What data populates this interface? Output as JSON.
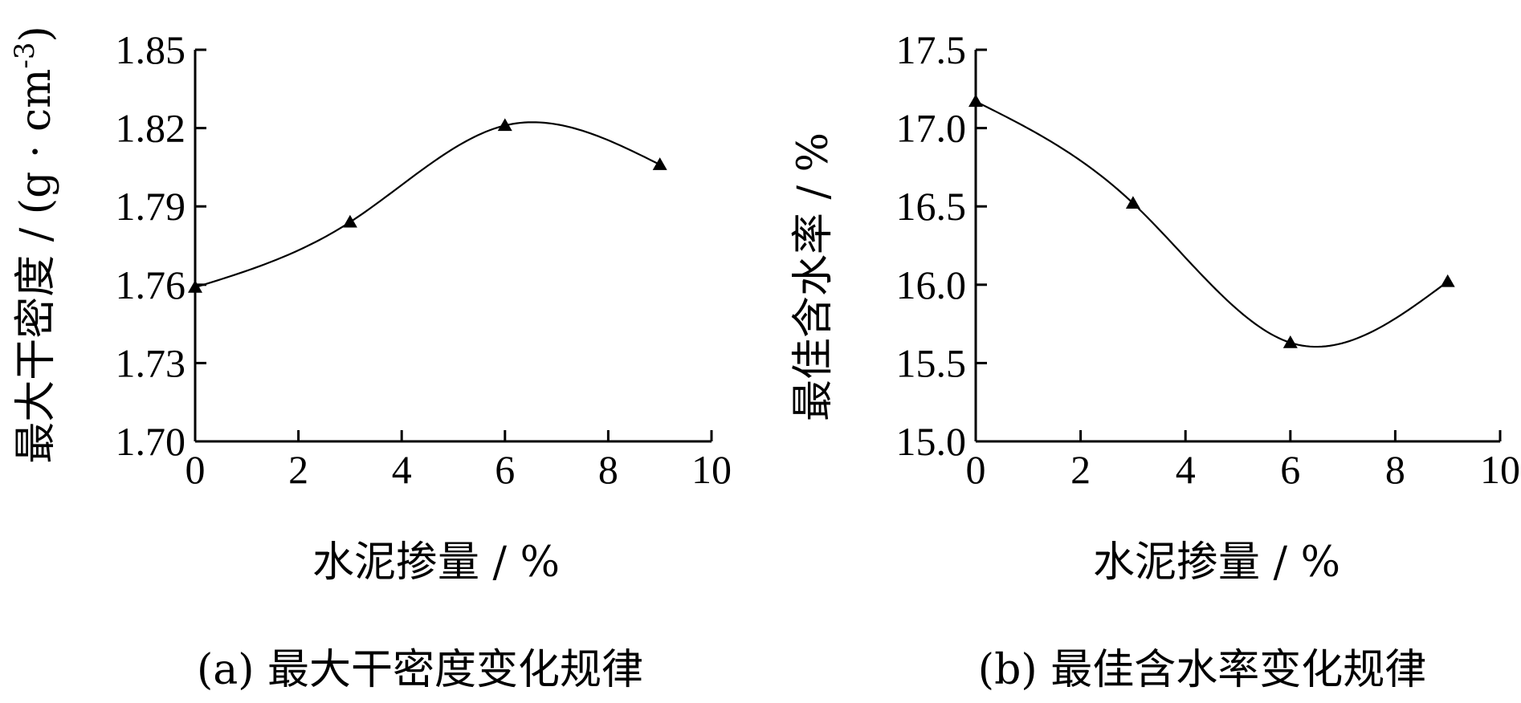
{
  "chart_data": [
    {
      "type": "line",
      "caption": "(a) 最大干密度变化规律",
      "xlabel": "水泥掺量 / %",
      "ylabel_main": "最大干密度 / (g · cm",
      "ylabel_sup": "-3",
      "ylabel_close": ")",
      "xlim": [
        0,
        10
      ],
      "ylim": [
        1.7,
        1.85
      ],
      "xticks": [
        0,
        2,
        4,
        6,
        8,
        10
      ],
      "yticks": [
        1.7,
        1.73,
        1.76,
        1.79,
        1.82,
        1.85
      ],
      "ytick_labels": [
        "1.70",
        "1.73",
        "1.76",
        "1.79",
        "1.82",
        "1.85"
      ],
      "x": [
        0,
        3,
        6,
        9
      ],
      "y": [
        1.759,
        1.784,
        1.821,
        1.806
      ],
      "marker": "triangle",
      "smooth": true,
      "grid": false
    },
    {
      "type": "line",
      "caption": "(b) 最佳含水率变化规律",
      "xlabel": "水泥掺量 / %",
      "ylabel_main": "最佳含水率 / %",
      "ylabel_sup": "",
      "ylabel_close": "",
      "xlim": [
        0,
        10
      ],
      "ylim": [
        15.0,
        17.5
      ],
      "xticks": [
        0,
        2,
        4,
        6,
        8,
        10
      ],
      "yticks": [
        15.0,
        15.5,
        16.0,
        16.5,
        17.0,
        17.5
      ],
      "ytick_labels": [
        "15.0",
        "15.5",
        "16.0",
        "16.5",
        "17.0",
        "17.5"
      ],
      "x": [
        0,
        3,
        6,
        9
      ],
      "y": [
        17.17,
        16.52,
        15.63,
        16.02
      ],
      "marker": "triangle",
      "smooth": true,
      "grid": false
    }
  ]
}
